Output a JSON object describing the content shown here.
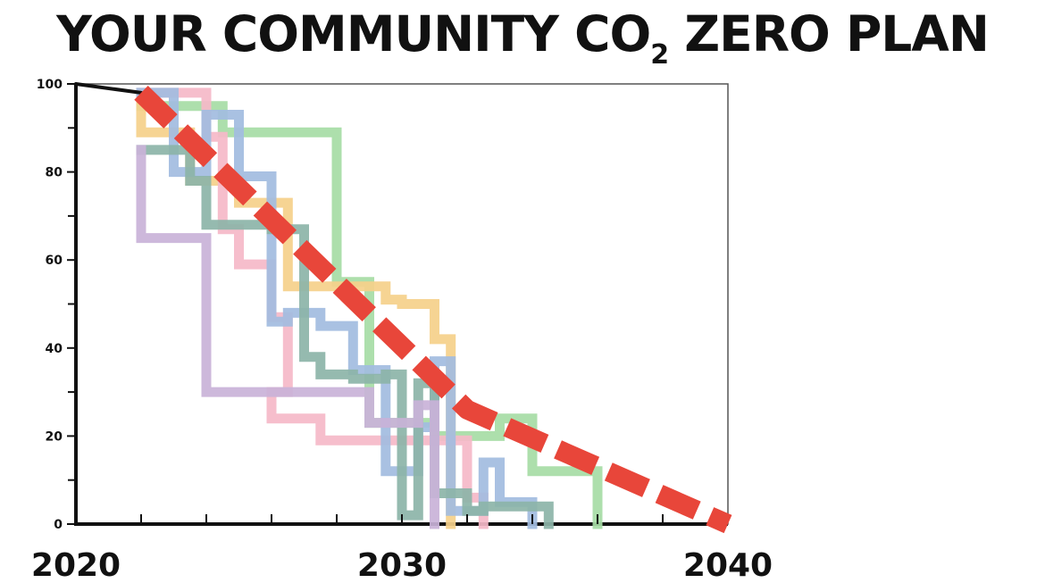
{
  "title": {
    "main": "YOUR COMMUNITY CO",
    "subscript": "2",
    "suffix": " ZERO PLAN"
  },
  "chart_data": {
    "type": "line",
    "title": "YOUR COMMUNITY CO2 ZERO PLAN",
    "xlabel": "",
    "ylabel": "",
    "xlim": [
      2020,
      2040
    ],
    "ylim": [
      0,
      100
    ],
    "x_ticks": [
      2020,
      2030,
      2040
    ],
    "y_ticks": [
      0,
      20,
      40,
      60,
      80,
      100
    ],
    "grid": false,
    "legend": "none",
    "history": {
      "color": "#111111",
      "points": [
        [
          2020,
          100
        ],
        [
          2022,
          98
        ]
      ]
    },
    "target": {
      "color": "#e8463a",
      "style": "dashed",
      "points": [
        [
          2022,
          98
        ],
        [
          2032,
          26
        ],
        [
          2040,
          0
        ]
      ]
    },
    "series": [
      {
        "color": "#a6dca5",
        "points": [
          [
            2022,
            95
          ],
          [
            2024.5,
            95
          ],
          [
            2024.5,
            89
          ],
          [
            2028,
            89
          ],
          [
            2028,
            55
          ],
          [
            2029,
            55
          ],
          [
            2029,
            23
          ],
          [
            2031,
            23
          ],
          [
            2031,
            20
          ],
          [
            2033,
            20
          ],
          [
            2033,
            24
          ],
          [
            2034,
            24
          ],
          [
            2034,
            12
          ],
          [
            2036,
            12
          ],
          [
            2036,
            0
          ]
        ]
      },
      {
        "color": "#f5d08a",
        "points": [
          [
            2022,
            95
          ],
          [
            2022,
            89
          ],
          [
            2023.5,
            89
          ],
          [
            2023.5,
            78
          ],
          [
            2025,
            78
          ],
          [
            2025,
            73
          ],
          [
            2026.5,
            73
          ],
          [
            2026.5,
            54
          ],
          [
            2029.5,
            54
          ],
          [
            2029.5,
            51
          ],
          [
            2030,
            51
          ],
          [
            2030,
            50
          ],
          [
            2031,
            50
          ],
          [
            2031,
            42
          ],
          [
            2031.5,
            42
          ],
          [
            2031.5,
            0
          ]
        ]
      },
      {
        "color": "#f5b8c8",
        "points": [
          [
            2022,
            98
          ],
          [
            2024,
            98
          ],
          [
            2024,
            88
          ],
          [
            2024.5,
            88
          ],
          [
            2024.5,
            67
          ],
          [
            2025,
            67
          ],
          [
            2025,
            59
          ],
          [
            2026,
            59
          ],
          [
            2026,
            47
          ],
          [
            2026.5,
            47
          ],
          [
            2026.5,
            30
          ],
          [
            2026,
            30
          ],
          [
            2026,
            24
          ],
          [
            2027.5,
            24
          ],
          [
            2027.5,
            19
          ],
          [
            2032,
            19
          ],
          [
            2032,
            6
          ],
          [
            2032.5,
            6
          ],
          [
            2032.5,
            0
          ]
        ]
      },
      {
        "color": "#a2bce0",
        "points": [
          [
            2022,
            98
          ],
          [
            2023,
            98
          ],
          [
            2023,
            80
          ],
          [
            2024,
            80
          ],
          [
            2024,
            93
          ],
          [
            2025,
            93
          ],
          [
            2025,
            79
          ],
          [
            2026,
            79
          ],
          [
            2026,
            46
          ],
          [
            2026.5,
            46
          ],
          [
            2026.5,
            48
          ],
          [
            2027.5,
            48
          ],
          [
            2027.5,
            45
          ],
          [
            2028.5,
            45
          ],
          [
            2028.5,
            35
          ],
          [
            2029.5,
            35
          ],
          [
            2029.5,
            12
          ],
          [
            2030.5,
            12
          ],
          [
            2030.5,
            22
          ],
          [
            2031,
            22
          ],
          [
            2031,
            37
          ],
          [
            2031.5,
            37
          ],
          [
            2031.5,
            3
          ],
          [
            2032.5,
            3
          ],
          [
            2032.5,
            14
          ],
          [
            2033,
            14
          ],
          [
            2033,
            5
          ],
          [
            2034,
            5
          ],
          [
            2034,
            0
          ]
        ]
      },
      {
        "color": "#8cb4a8",
        "points": [
          [
            2022,
            85
          ],
          [
            2023.5,
            85
          ],
          [
            2023.5,
            78
          ],
          [
            2024,
            78
          ],
          [
            2024,
            68
          ],
          [
            2026,
            68
          ],
          [
            2026,
            67
          ],
          [
            2027,
            67
          ],
          [
            2027,
            38
          ],
          [
            2027.5,
            38
          ],
          [
            2027.5,
            34
          ],
          [
            2028.5,
            34
          ],
          [
            2028.5,
            33
          ],
          [
            2029.5,
            33
          ],
          [
            2029.5,
            34
          ],
          [
            2030,
            34
          ],
          [
            2030,
            2
          ],
          [
            2030.5,
            2
          ],
          [
            2030.5,
            32
          ],
          [
            2031,
            32
          ],
          [
            2031,
            7
          ],
          [
            2032,
            7
          ],
          [
            2032,
            3
          ],
          [
            2032.5,
            3
          ],
          [
            2032.5,
            4
          ],
          [
            2034.5,
            4
          ],
          [
            2034.5,
            0
          ]
        ]
      },
      {
        "color": "#c9b2d8",
        "points": [
          [
            2022,
            85
          ],
          [
            2022,
            65
          ],
          [
            2024,
            65
          ],
          [
            2024,
            30
          ],
          [
            2029,
            30
          ],
          [
            2029,
            23
          ],
          [
            2030.5,
            23
          ],
          [
            2030.5,
            27
          ],
          [
            2031,
            27
          ],
          [
            2031,
            0
          ]
        ]
      }
    ]
  }
}
